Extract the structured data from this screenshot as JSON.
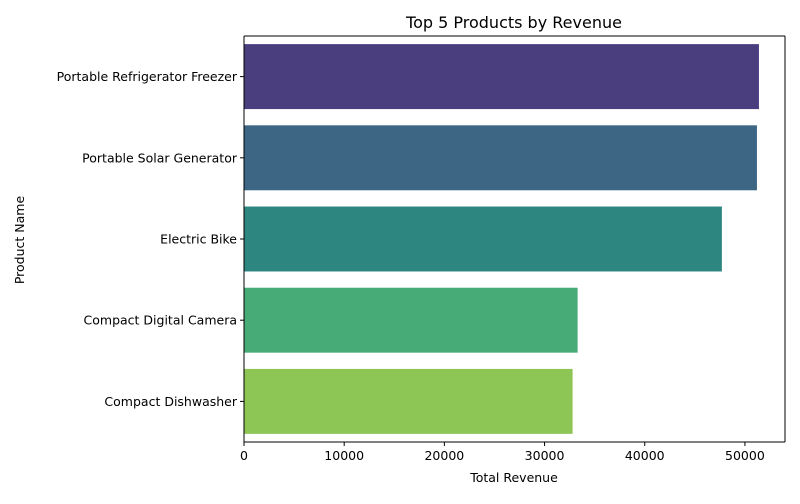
{
  "chart_data": {
    "type": "bar",
    "orientation": "horizontal",
    "title": "Top 5 Products by Revenue",
    "xlabel": "Total Revenue",
    "ylabel": "Product Name",
    "categories": [
      "Portable Refrigerator Freezer",
      "Portable Solar Generator",
      "Electric Bike",
      "Compact Digital Camera",
      "Compact Dishwasher"
    ],
    "values": [
      51400,
      51200,
      47700,
      33300,
      32800
    ],
    "colors": [
      "#4b3e7f",
      "#3d6685",
      "#2e8680",
      "#47ab77",
      "#8ec655"
    ],
    "xlim": [
      0,
      54000
    ],
    "xticks": [
      0,
      10000,
      20000,
      30000,
      40000,
      50000
    ],
    "grid": false,
    "legend": "none"
  }
}
